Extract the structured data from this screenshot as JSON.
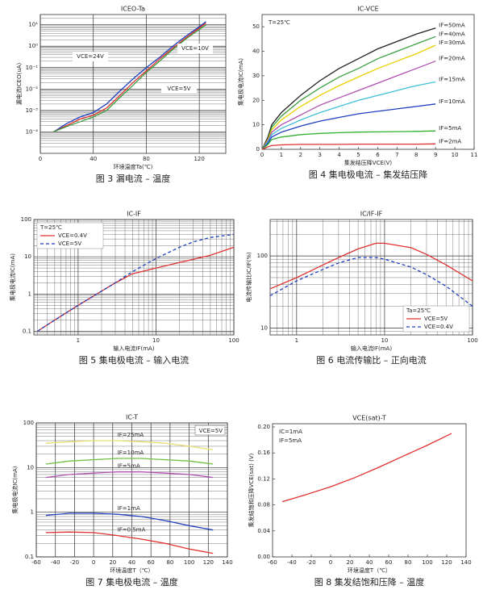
{
  "chart_data": [
    {
      "type": "line",
      "title": "ICEO-Ta",
      "xlabel": "环境温度Ta(℃)",
      "ylabel": "漏电流ICEO(uA)",
      "caption": "图 3 漏电流 – 温度",
      "ylog": true,
      "grid": true,
      "xlim": [
        0,
        140
      ],
      "ylim": [
        1e-05,
        30
      ],
      "xticks": [
        0,
        40,
        80,
        120
      ],
      "yticks": [
        {
          "value": 0.0001,
          "label": "10⁻⁴"
        },
        {
          "value": 0.001,
          "label": "10⁻³"
        },
        {
          "value": 0.01,
          "label": "10⁻²"
        },
        {
          "value": 0.1,
          "label": "10⁻¹"
        },
        {
          "value": 1,
          "label": "10⁰"
        },
        {
          "value": 10,
          "label": "10¹"
        }
      ],
      "x": [
        10,
        20,
        30,
        40,
        50,
        60,
        70,
        80,
        90,
        100,
        110,
        120,
        125
      ],
      "series": [
        {
          "name": "VCE=24V",
          "color": "#1f3fbf",
          "values": [
            0.0001,
            0.00025,
            0.0005,
            0.0008,
            0.002,
            0.008,
            0.03,
            0.1,
            0.3,
            1,
            3,
            8,
            14
          ]
        },
        {
          "name": "VCE=10V",
          "color": "#e03030",
          "values": [
            0.0001,
            0.0002,
            0.0004,
            0.0006,
            0.0013,
            0.005,
            0.02,
            0.07,
            0.25,
            0.8,
            2.5,
            7,
            12
          ]
        },
        {
          "name": "VCE=5V",
          "color": "#3aa040",
          "values": [
            0.0001,
            0.00018,
            0.0003,
            0.0005,
            0.001,
            0.004,
            0.015,
            0.06,
            0.2,
            0.7,
            2.2,
            6,
            10
          ]
        }
      ]
    },
    {
      "type": "line",
      "title": "IC-VCE",
      "xlabel": "集发结压降VCE(V)",
      "ylabel": "集电极电流IC(mA)",
      "caption": "图 4 集电极电流 – 集发结压降",
      "grid": false,
      "xlim": [
        0,
        11
      ],
      "ylim": [
        0,
        55
      ],
      "xticks": [
        0,
        1,
        2,
        3,
        4,
        5,
        6,
        7,
        8,
        9,
        10,
        11
      ],
      "yticks": [
        0,
        10,
        20,
        30,
        40,
        50
      ],
      "annotations": [
        "T=25℃"
      ],
      "x": [
        0,
        0.3,
        0.5,
        1,
        2,
        3,
        4,
        5,
        6,
        7,
        8,
        9
      ],
      "series": [
        {
          "name": "IF=50mA",
          "color": "#222222",
          "values": [
            0,
            5,
            10,
            15,
            22,
            28,
            33,
            37,
            41,
            44,
            47,
            49.5
          ]
        },
        {
          "name": "IF=40mA",
          "color": "#3aa040",
          "values": [
            0,
            4,
            9,
            13.5,
            20,
            25,
            29.5,
            33,
            37,
            40,
            43,
            46
          ]
        },
        {
          "name": "IF=30mA",
          "color": "#e8d000",
          "values": [
            0,
            4,
            8,
            12,
            17.5,
            22,
            26,
            29.5,
            33,
            36,
            39,
            42.5
          ]
        },
        {
          "name": "IF=20mA",
          "color": "#b050b0",
          "values": [
            0,
            3.5,
            7,
            10,
            14,
            18,
            21,
            24,
            27,
            30,
            33,
            36
          ]
        },
        {
          "name": "IF=15mA",
          "color": "#40c0d8",
          "values": [
            0,
            3,
            6,
            8.5,
            12,
            15,
            17.5,
            20,
            22,
            24,
            26,
            27.5
          ]
        },
        {
          "name": "IF=10mA",
          "color": "#1f3fbf",
          "values": [
            0,
            2.5,
            5,
            7,
            9.5,
            11.5,
            13,
            14.5,
            15.5,
            16.5,
            17.5,
            18.5
          ]
        },
        {
          "name": "IF=5mA",
          "color": "#30b030",
          "values": [
            0,
            2,
            4,
            5,
            6,
            6.5,
            6.8,
            7,
            7.1,
            7.2,
            7.3,
            7.5
          ]
        },
        {
          "name": "IF=2mA",
          "color": "#e03030",
          "values": [
            0,
            1,
            1.5,
            1.8,
            2,
            2,
            2,
            2.1,
            2.1,
            2.1,
            2.1,
            2.2
          ]
        }
      ]
    },
    {
      "type": "line",
      "title": "IC-IF",
      "xlabel": "输入电流IF(mA)",
      "ylabel": "集电极电流IC(mA)",
      "caption": "图 5 集电极电流 – 输入电流",
      "xlog": true,
      "ylog": true,
      "grid": true,
      "legend": "upper left",
      "xlim": [
        0.27,
        100
      ],
      "ylim": [
        0.08,
        100
      ],
      "xticks": [
        1,
        10,
        100
      ],
      "yticks": [
        0.1,
        1,
        10,
        100
      ],
      "annotations": [
        "T=25℃"
      ],
      "x": [
        0.3,
        0.5,
        1,
        2,
        3,
        5,
        10,
        20,
        30,
        50,
        100
      ],
      "series": [
        {
          "name": "VCE=0.4V",
          "color": "#e03030",
          "linestyle": "solid",
          "values": [
            0.1,
            0.2,
            0.5,
            1.2,
            2,
            3.5,
            5,
            7,
            8.5,
            11,
            18
          ]
        },
        {
          "name": "VCE=5V",
          "color": "#1f3fbf",
          "linestyle": "dashed",
          "values": [
            0.1,
            0.2,
            0.5,
            1.2,
            2,
            4,
            9,
            18,
            25,
            33,
            40
          ]
        }
      ]
    },
    {
      "type": "line",
      "title": "IC/IF-IF",
      "xlabel": "输入电流IF(mA)",
      "ylabel": "电流传输比IC/IF(%)",
      "caption": "图 6 电流传输比 – 正向电流",
      "xlog": true,
      "ylog": true,
      "grid": true,
      "legend": "lower right",
      "xlim": [
        0.5,
        100
      ],
      "ylim": [
        8,
        320
      ],
      "xticks": [
        1,
        10,
        100
      ],
      "yticks": [
        10,
        100
      ],
      "annotations": [
        "Ta=25℃"
      ],
      "x": [
        0.5,
        1,
        2,
        3,
        5,
        8,
        10,
        20,
        30,
        50,
        100
      ],
      "series": [
        {
          "name": "VCE=5V",
          "color": "#e03030",
          "linestyle": "solid",
          "values": [
            35,
            50,
            75,
            95,
            125,
            150,
            150,
            130,
            105,
            75,
            45
          ]
        },
        {
          "name": "VCE=0.4V",
          "color": "#1f3fbf",
          "linestyle": "dashed",
          "values": [
            28,
            45,
            65,
            80,
            95,
            95,
            90,
            70,
            55,
            38,
            20
          ]
        }
      ]
    },
    {
      "type": "line",
      "title": "IC-T",
      "xlabel": "环境温度T（℃）",
      "ylabel": "集电极电流IC(mA)",
      "caption": "图 7 集电极电流 – 温度",
      "ylog": true,
      "grid": true,
      "xlim": [
        -60,
        140
      ],
      "ylim": [
        0.1,
        100
      ],
      "xticks": [
        -60,
        -40,
        -20,
        0,
        20,
        40,
        60,
        80,
        100,
        120,
        140
      ],
      "yticks": [
        0.1,
        1,
        10,
        100
      ],
      "annotations": [
        "VCE=5V"
      ],
      "x": [
        -50,
        -25,
        0,
        25,
        50,
        75,
        100,
        125
      ],
      "series": [
        {
          "name": "IF=25mA",
          "color": "#e8e070",
          "values": [
            35,
            38,
            40,
            40,
            38,
            35,
            30,
            25
          ]
        },
        {
          "name": "IF=10mA",
          "color": "#70c040",
          "values": [
            12,
            14,
            15,
            16,
            16,
            15,
            14,
            12
          ]
        },
        {
          "name": "IF=5mA",
          "color": "#b050b0",
          "values": [
            6,
            7,
            7.5,
            8,
            8,
            7.5,
            7,
            6
          ]
        },
        {
          "name": "IF=1mA",
          "color": "#1f3fbf",
          "values": [
            0.85,
            0.95,
            0.95,
            0.9,
            0.8,
            0.65,
            0.5,
            0.4
          ]
        },
        {
          "name": "IF=0.5mA",
          "color": "#e03030",
          "values": [
            0.35,
            0.36,
            0.35,
            0.3,
            0.25,
            0.2,
            0.15,
            0.12
          ]
        }
      ]
    },
    {
      "type": "line",
      "title": "VCE(sat)-T",
      "xlabel": "环境温度T（℃）",
      "ylabel": "集发结饱和压降VCE(sat) (V)",
      "caption": "图 8 集发结饱和压降 – 温度",
      "grid": false,
      "xlim": [
        -60,
        140
      ],
      "ylim": [
        0,
        0.205
      ],
      "xticks": [
        -60,
        -40,
        -20,
        0,
        20,
        40,
        60,
        80,
        100,
        120,
        140
      ],
      "yticks": [
        {
          "value": 0,
          "label": "0.00"
        },
        0.04,
        0.08,
        0.12,
        0.16,
        {
          "value": 0.2,
          "label": "0.20"
        }
      ],
      "annotations": [
        "IC=1mA",
        "IF=5mA"
      ],
      "x": [
        -50,
        -25,
        0,
        25,
        50,
        75,
        100,
        125
      ],
      "series": [
        {
          "name": "VCE(sat)",
          "color": "#e03030",
          "values": [
            0.085,
            0.096,
            0.108,
            0.122,
            0.138,
            0.155,
            0.172,
            0.19
          ]
        }
      ]
    }
  ]
}
